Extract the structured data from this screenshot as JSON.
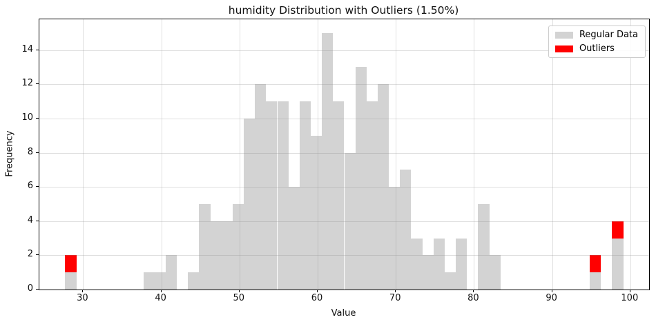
{
  "title": "humidity Distribution with Outliers (1.50%)",
  "legend": {
    "items": [
      {
        "label": "Regular Data",
        "color": "#d3d3d3"
      },
      {
        "label": "Outliers",
        "color": "#ff0000"
      }
    ]
  },
  "axes": {
    "xlabel": "Value",
    "ylabel": "Frequency"
  },
  "chart_data": {
    "type": "bar",
    "subtype": "stacked-histogram",
    "title": "humidity Distribution with Outliers (1.50%)",
    "xlabel": "Value",
    "ylabel": "Frequency",
    "bins": 50,
    "bin_start": 27.7,
    "bin_width": 1.428,
    "xlim": [
      24.4,
      102.4
    ],
    "ylim": [
      0,
      15.8
    ],
    "x_ticks": [
      30,
      40,
      50,
      60,
      70,
      80,
      90,
      100
    ],
    "y_ticks": [
      0,
      2,
      4,
      6,
      8,
      10,
      12,
      14
    ],
    "grid": true,
    "legend_position": "upper right",
    "series": [
      {
        "name": "Regular Data",
        "color": "#d3d3d3",
        "values": [
          1,
          0,
          0,
          0,
          0,
          0,
          0,
          1,
          1,
          2,
          0,
          1,
          5,
          4,
          4,
          5,
          10,
          12,
          11,
          11,
          6,
          11,
          9,
          15,
          11,
          8,
          13,
          11,
          12,
          6,
          7,
          3,
          2,
          3,
          1,
          3,
          0,
          5,
          2,
          0,
          0,
          0,
          0,
          0,
          0,
          0,
          0,
          1,
          0,
          3
        ]
      },
      {
        "name": "Outliers",
        "color": "#ff0000",
        "values": [
          1,
          0,
          0,
          0,
          0,
          0,
          0,
          0,
          0,
          0,
          0,
          0,
          0,
          0,
          0,
          0,
          0,
          0,
          0,
          0,
          0,
          0,
          0,
          0,
          0,
          0,
          0,
          0,
          0,
          0,
          0,
          0,
          0,
          0,
          0,
          0,
          0,
          0,
          0,
          0,
          0,
          0,
          0,
          0,
          0,
          0,
          0,
          1,
          0,
          1
        ]
      }
    ]
  }
}
